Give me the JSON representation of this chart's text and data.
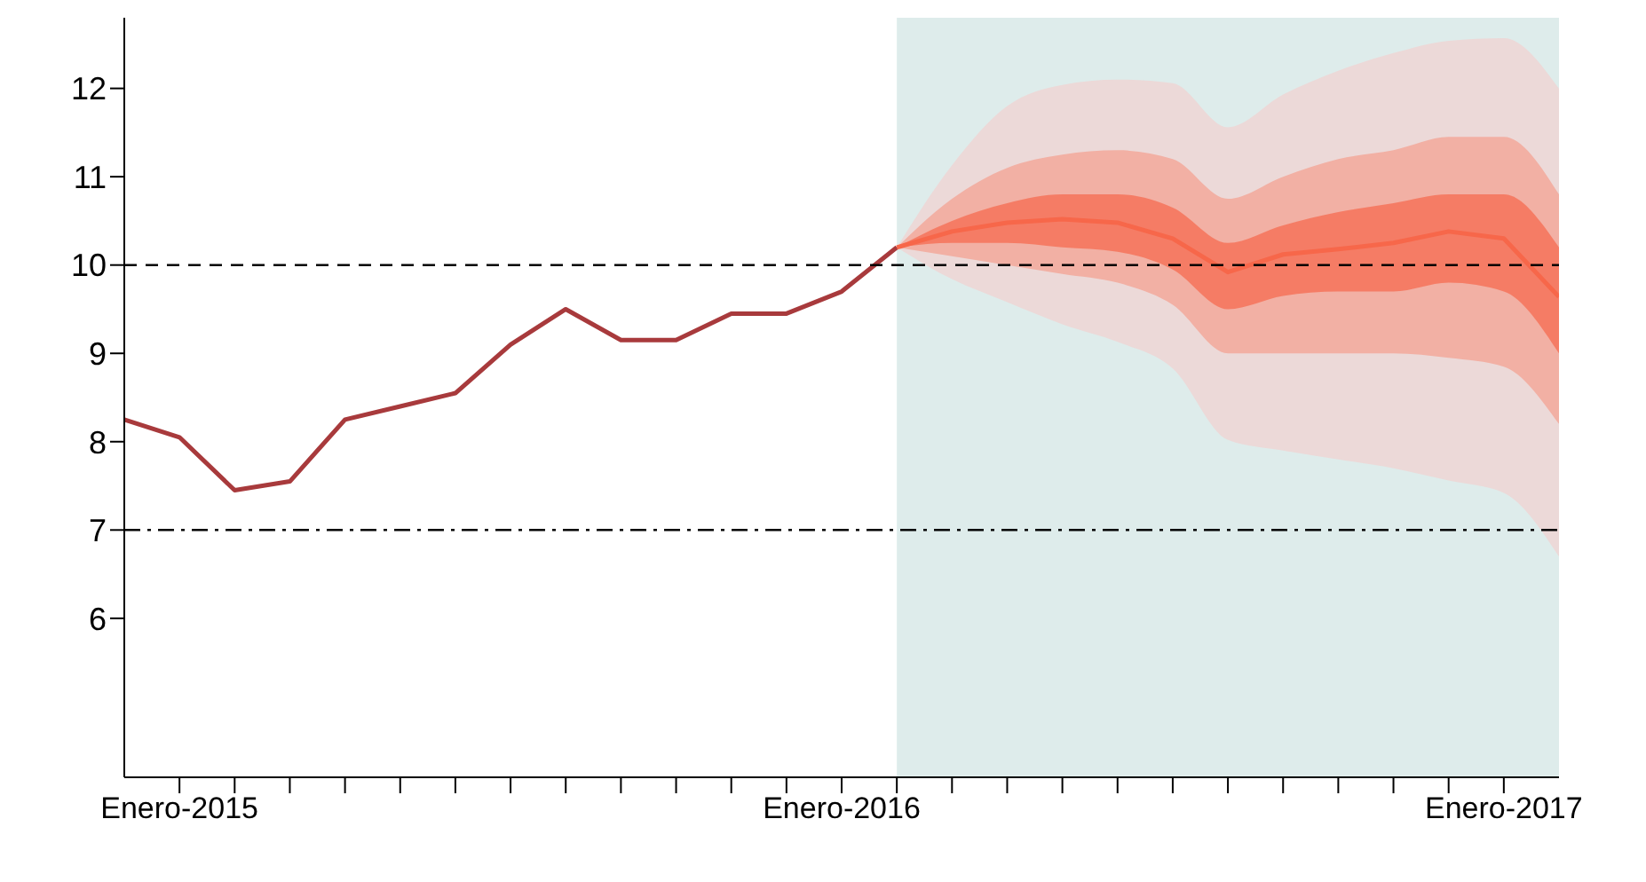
{
  "chart_data": {
    "type": "line",
    "xlim": [
      "2014-12",
      "2017-02"
    ],
    "ylim": [
      4.2,
      12.8
    ],
    "yticks": [
      6,
      7,
      8,
      9,
      10,
      11,
      12
    ],
    "xticks": [
      {
        "value": "2015-01",
        "label": "Enero-2015"
      },
      {
        "value": "2015-02",
        "label": null
      },
      {
        "value": "2015-03",
        "label": null
      },
      {
        "value": "2015-04",
        "label": null
      },
      {
        "value": "2015-05",
        "label": null
      },
      {
        "value": "2015-06",
        "label": null
      },
      {
        "value": "2015-07",
        "label": null
      },
      {
        "value": "2015-08",
        "label": null
      },
      {
        "value": "2015-09",
        "label": null
      },
      {
        "value": "2015-10",
        "label": null
      },
      {
        "value": "2015-11",
        "label": null
      },
      {
        "value": "2015-12",
        "label": null
      },
      {
        "value": "2016-01",
        "label": "Enero-2016"
      },
      {
        "value": "2016-02",
        "label": null
      },
      {
        "value": "2016-03",
        "label": null
      },
      {
        "value": "2016-04",
        "label": null
      },
      {
        "value": "2016-05",
        "label": null
      },
      {
        "value": "2016-06",
        "label": null
      },
      {
        "value": "2016-07",
        "label": null
      },
      {
        "value": "2016-08",
        "label": null
      },
      {
        "value": "2016-09",
        "label": null
      },
      {
        "value": "2016-10",
        "label": null
      },
      {
        "value": "2016-11",
        "label": null
      },
      {
        "value": "2016-12",
        "label": null
      },
      {
        "value": "2017-01",
        "label": "Enero-2017"
      }
    ],
    "grid": false,
    "marker": "none",
    "bands": [
      {
        "axis": "x",
        "from": "2016-02",
        "to": "2017-02",
        "color": "#deeceb"
      }
    ],
    "ref_lines": [
      {
        "axis": "y",
        "value": 10,
        "line_style": "dashed",
        "color": "#000000"
      },
      {
        "axis": "y",
        "value": 7,
        "line_style": "dotted",
        "color": "#000000"
      }
    ],
    "series": [
      {
        "color": "#a83a3c",
        "x": [
          "2014-12",
          "2015-01",
          "2015-02",
          "2015-03",
          "2015-04",
          "2015-05",
          "2015-06",
          "2015-07",
          "2015-08",
          "2015-09",
          "2015-10",
          "2015-11",
          "2015-12",
          "2016-01",
          "2016-02"
        ],
        "values": [
          8.25,
          8.05,
          7.45,
          7.55,
          8.25,
          8.4,
          8.55,
          9.1,
          9.5,
          9.15,
          9.15,
          9.45,
          9.45,
          9.7,
          10.2
        ]
      },
      {
        "type": "area",
        "color": "#ecd9d8",
        "x": [
          "2016-02",
          "2016-03",
          "2016-04",
          "2016-05",
          "2016-06",
          "2016-07",
          "2016-08",
          "2016-09",
          "2016-10",
          "2016-11",
          "2016-12",
          "2017-01",
          "2017-02"
        ],
        "values": [
          null,
          null,
          null,
          null,
          null,
          null,
          null,
          null,
          null,
          null,
          null,
          null,
          null
        ],
        "lower": [
          10.2,
          9.84,
          9.58,
          9.33,
          9.13,
          8.83,
          8.02,
          7.9,
          7.8,
          7.7,
          7.56,
          7.42,
          6.7
        ],
        "upper": [
          10.2,
          11.13,
          11.8,
          12.04,
          12.1,
          12.06,
          11.56,
          11.93,
          12.2,
          12.4,
          12.54,
          12.57,
          12.0
        ]
      },
      {
        "type": "area",
        "color": "#f2b0a4",
        "x": [
          "2016-02",
          "2016-03",
          "2016-04",
          "2016-05",
          "2016-06",
          "2016-07",
          "2016-08",
          "2016-09",
          "2016-10",
          "2016-11",
          "2016-12",
          "2017-01",
          "2017-02"
        ],
        "values": [
          null,
          null,
          null,
          null,
          null,
          null,
          null,
          null,
          null,
          null,
          null,
          null,
          null
        ],
        "lower": [
          10.2,
          10.1,
          10.0,
          9.9,
          9.8,
          9.55,
          9.0,
          9.0,
          9.0,
          9.0,
          8.95,
          8.85,
          8.2
        ],
        "upper": [
          10.2,
          10.75,
          11.1,
          11.25,
          11.3,
          11.2,
          10.75,
          11.0,
          11.2,
          11.3,
          11.45,
          11.45,
          10.8
        ]
      },
      {
        "type": "line",
        "color": "#f7674a",
        "x": [
          "2016-02",
          "2016-03",
          "2016-04",
          "2016-05",
          "2016-06",
          "2016-07",
          "2016-08",
          "2016-09",
          "2016-10",
          "2016-11",
          "2016-12",
          "2017-01",
          "2017-02"
        ],
        "values": [
          10.2,
          10.38,
          10.48,
          10.52,
          10.48,
          10.3,
          9.92,
          10.12,
          10.18,
          10.25,
          10.38,
          10.3,
          9.64
        ],
        "lower": [
          10.2,
          10.25,
          10.25,
          10.2,
          10.15,
          9.95,
          9.5,
          9.65,
          9.7,
          9.7,
          9.8,
          9.7,
          9.0
        ],
        "upper": [
          10.2,
          10.5,
          10.7,
          10.8,
          10.8,
          10.65,
          10.25,
          10.45,
          10.6,
          10.7,
          10.8,
          10.8,
          10.2
        ]
      }
    ]
  }
}
